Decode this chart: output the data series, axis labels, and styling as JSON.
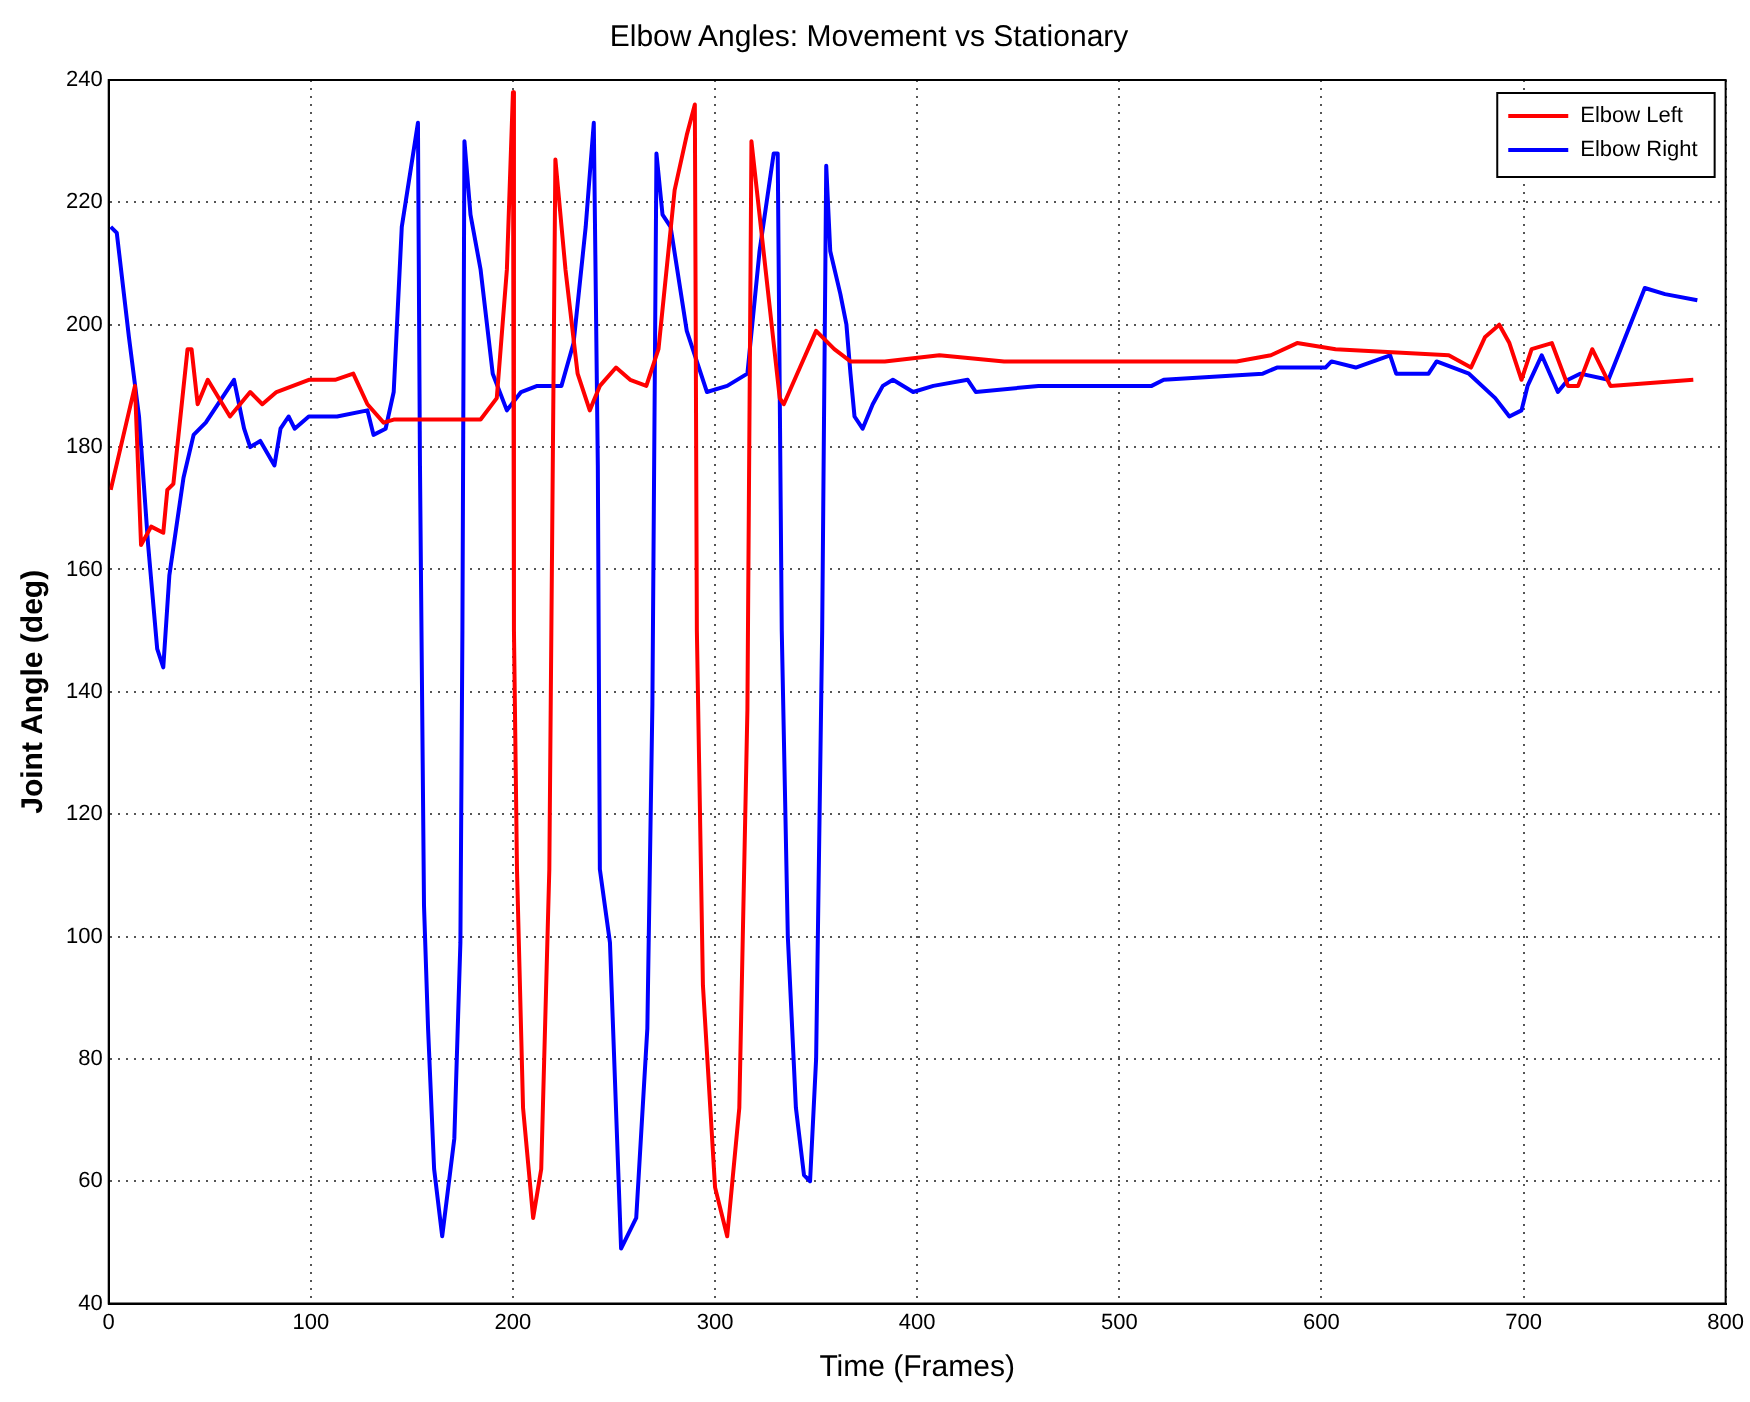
{
  "chart_data": {
    "type": "line",
    "title": "Elbow Angles: Movement vs Stationary",
    "xlabel": "Time (Frames)",
    "ylabel": "Joint Angle (deg)",
    "xlim": [
      0,
      800
    ],
    "xticks": [
      0,
      100,
      200,
      300,
      400,
      500,
      600,
      700,
      800
    ],
    "ylim": [
      40,
      240
    ],
    "yticks": [
      40,
      60,
      80,
      100,
      120,
      140,
      160,
      180,
      200,
      220,
      240
    ],
    "grid": true,
    "legend": "top right",
    "marker": "none",
    "line_style": "solid",
    "series": [
      {
        "name": "Elbow Left",
        "color": "#ff0000",
        "x": [
          1,
          13,
          16,
          21,
          27,
          29,
          32,
          39,
          41,
          44,
          49,
          60,
          70,
          76,
          83,
          99,
          112,
          121,
          128,
          136,
          141,
          184,
          192,
          197,
          200,
          200.5,
          202,
          205,
          210,
          214,
          218,
          221,
          226,
          232,
          238,
          243,
          251,
          258,
          266,
          272,
          280,
          286,
          290,
          291,
          294,
          300,
          306,
          312,
          316,
          318,
          325,
          332,
          334,
          342,
          350,
          359,
          367,
          384,
          411,
          443,
          509,
          558,
          575,
          588,
          607,
          663,
          674,
          681,
          688,
          693,
          699,
          704,
          714,
          722,
          727,
          734,
          743,
          784
        ],
        "values": [
          173,
          190,
          164,
          167,
          166,
          173,
          174,
          196,
          196,
          187,
          191,
          185,
          189,
          187,
          189,
          191,
          191,
          192,
          187,
          184,
          184.5,
          184.5,
          188,
          209,
          238,
          150,
          111,
          72,
          54,
          62,
          111,
          227,
          209,
          192,
          186,
          190,
          193,
          191,
          190,
          196,
          222,
          231,
          236,
          150,
          92,
          59,
          51,
          72,
          137,
          230,
          209,
          188,
          187,
          193,
          199,
          196,
          194,
          194,
          195,
          194,
          194,
          194,
          195,
          197,
          196,
          195,
          193,
          198,
          200,
          197,
          191,
          196,
          197,
          190,
          190,
          196,
          190,
          191
        ]
      },
      {
        "name": "Elbow Right",
        "color": "#0000ff",
        "x": [
          1,
          4,
          10,
          15,
          19.5,
          24,
          27,
          30,
          37,
          42,
          48,
          62,
          67,
          70,
          75,
          82,
          85,
          89,
          92,
          99,
          113,
          128,
          131,
          137,
          141,
          145,
          153,
          154,
          156,
          158,
          161,
          165,
          171,
          174,
          175,
          176,
          179,
          184,
          190,
          197,
          204,
          212,
          224,
          230,
          236,
          240,
          242,
          243,
          248,
          253.5,
          261,
          266.5,
          269,
          271,
          274,
          278,
          286,
          296,
          306,
          316,
          322,
          329,
          331,
          333,
          336,
          340,
          344,
          347,
          350,
          353,
          355,
          357,
          362,
          365,
          367,
          369,
          373,
          378,
          383,
          388,
          398,
          408,
          425,
          429,
          460,
          516,
          522,
          571,
          578,
          602,
          605,
          617,
          634,
          637,
          653,
          657,
          673,
          686,
          693,
          699,
          702,
          709,
          717,
          722,
          728,
          742,
          748,
          760,
          770,
          786
        ],
        "values": [
          216,
          215,
          198,
          185,
          164,
          147,
          144,
          159,
          175,
          182,
          184,
          191,
          183,
          180,
          181,
          177,
          183,
          185,
          183,
          185,
          185,
          186,
          182,
          183,
          189,
          216,
          233,
          177,
          105,
          85,
          62,
          51,
          67,
          99,
          150,
          230,
          218,
          209,
          192,
          186,
          189,
          190,
          190,
          197,
          216,
          233,
          177,
          111,
          99,
          49,
          54,
          85,
          138,
          228,
          218,
          216,
          199,
          189,
          190,
          192,
          212,
          228,
          228,
          150,
          100,
          72,
          61,
          60,
          80,
          150,
          226,
          212,
          205,
          200,
          192,
          185,
          183,
          187,
          190,
          191,
          189,
          190,
          191,
          189,
          190,
          190,
          191,
          192,
          193,
          193,
          194,
          193,
          195,
          192,
          192,
          194,
          192,
          188,
          185,
          186,
          190,
          195,
          189,
          191,
          192,
          191,
          196,
          206,
          205,
          204
        ]
      }
    ]
  }
}
